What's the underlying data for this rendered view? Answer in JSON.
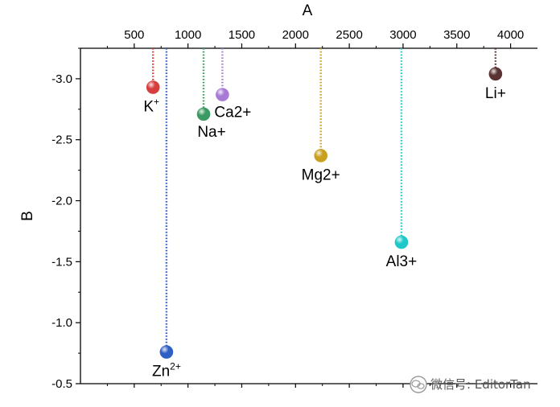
{
  "chart_data": {
    "type": "scatter",
    "xlabel": "A",
    "ylabel": "B",
    "xlim": [
      0,
      4250
    ],
    "ylim": [
      -0.5,
      -3.25
    ],
    "x_axis_position": "top",
    "y_axis_reversed": true,
    "grid": false,
    "x_ticks": [
      "500",
      "1000",
      "1500",
      "2000",
      "2500",
      "3000",
      "3500",
      "4000"
    ],
    "y_ticks": [
      "-3.0",
      "-2.5",
      "-2.0",
      "-1.5",
      "-1.0",
      "-0.5"
    ],
    "points": [
      {
        "label": "K",
        "sup": "+",
        "x": 675,
        "y": -2.93,
        "color": "#d63d3d",
        "label_pos": "below-left"
      },
      {
        "label": "Zn",
        "sup": "2+",
        "x": 800,
        "y": -0.76,
        "color": "#2f5fc4",
        "label_pos": "below"
      },
      {
        "label": "Na+",
        "sup": "",
        "x": 1145,
        "y": -2.71,
        "color": "#3a9a62",
        "label_pos": "below"
      },
      {
        "label": "Ca2+",
        "sup": "",
        "x": 1320,
        "y": -2.87,
        "color": "#a77ad6",
        "label_pos": "below-right"
      },
      {
        "label": "Mg2+",
        "sup": "",
        "x": 2235,
        "y": -2.37,
        "color": "#c9a020",
        "label_pos": "below"
      },
      {
        "label": "Al3+",
        "sup": "",
        "x": 2985,
        "y": -1.66,
        "color": "#1fc8c8",
        "label_pos": "below"
      },
      {
        "label": "Li+",
        "sup": "",
        "x": 3860,
        "y": -3.04,
        "color": "#5a3232",
        "label_pos": "below"
      }
    ]
  },
  "watermark": {
    "text": "微信号: EditorTan",
    "icon": "wechat-icon"
  }
}
